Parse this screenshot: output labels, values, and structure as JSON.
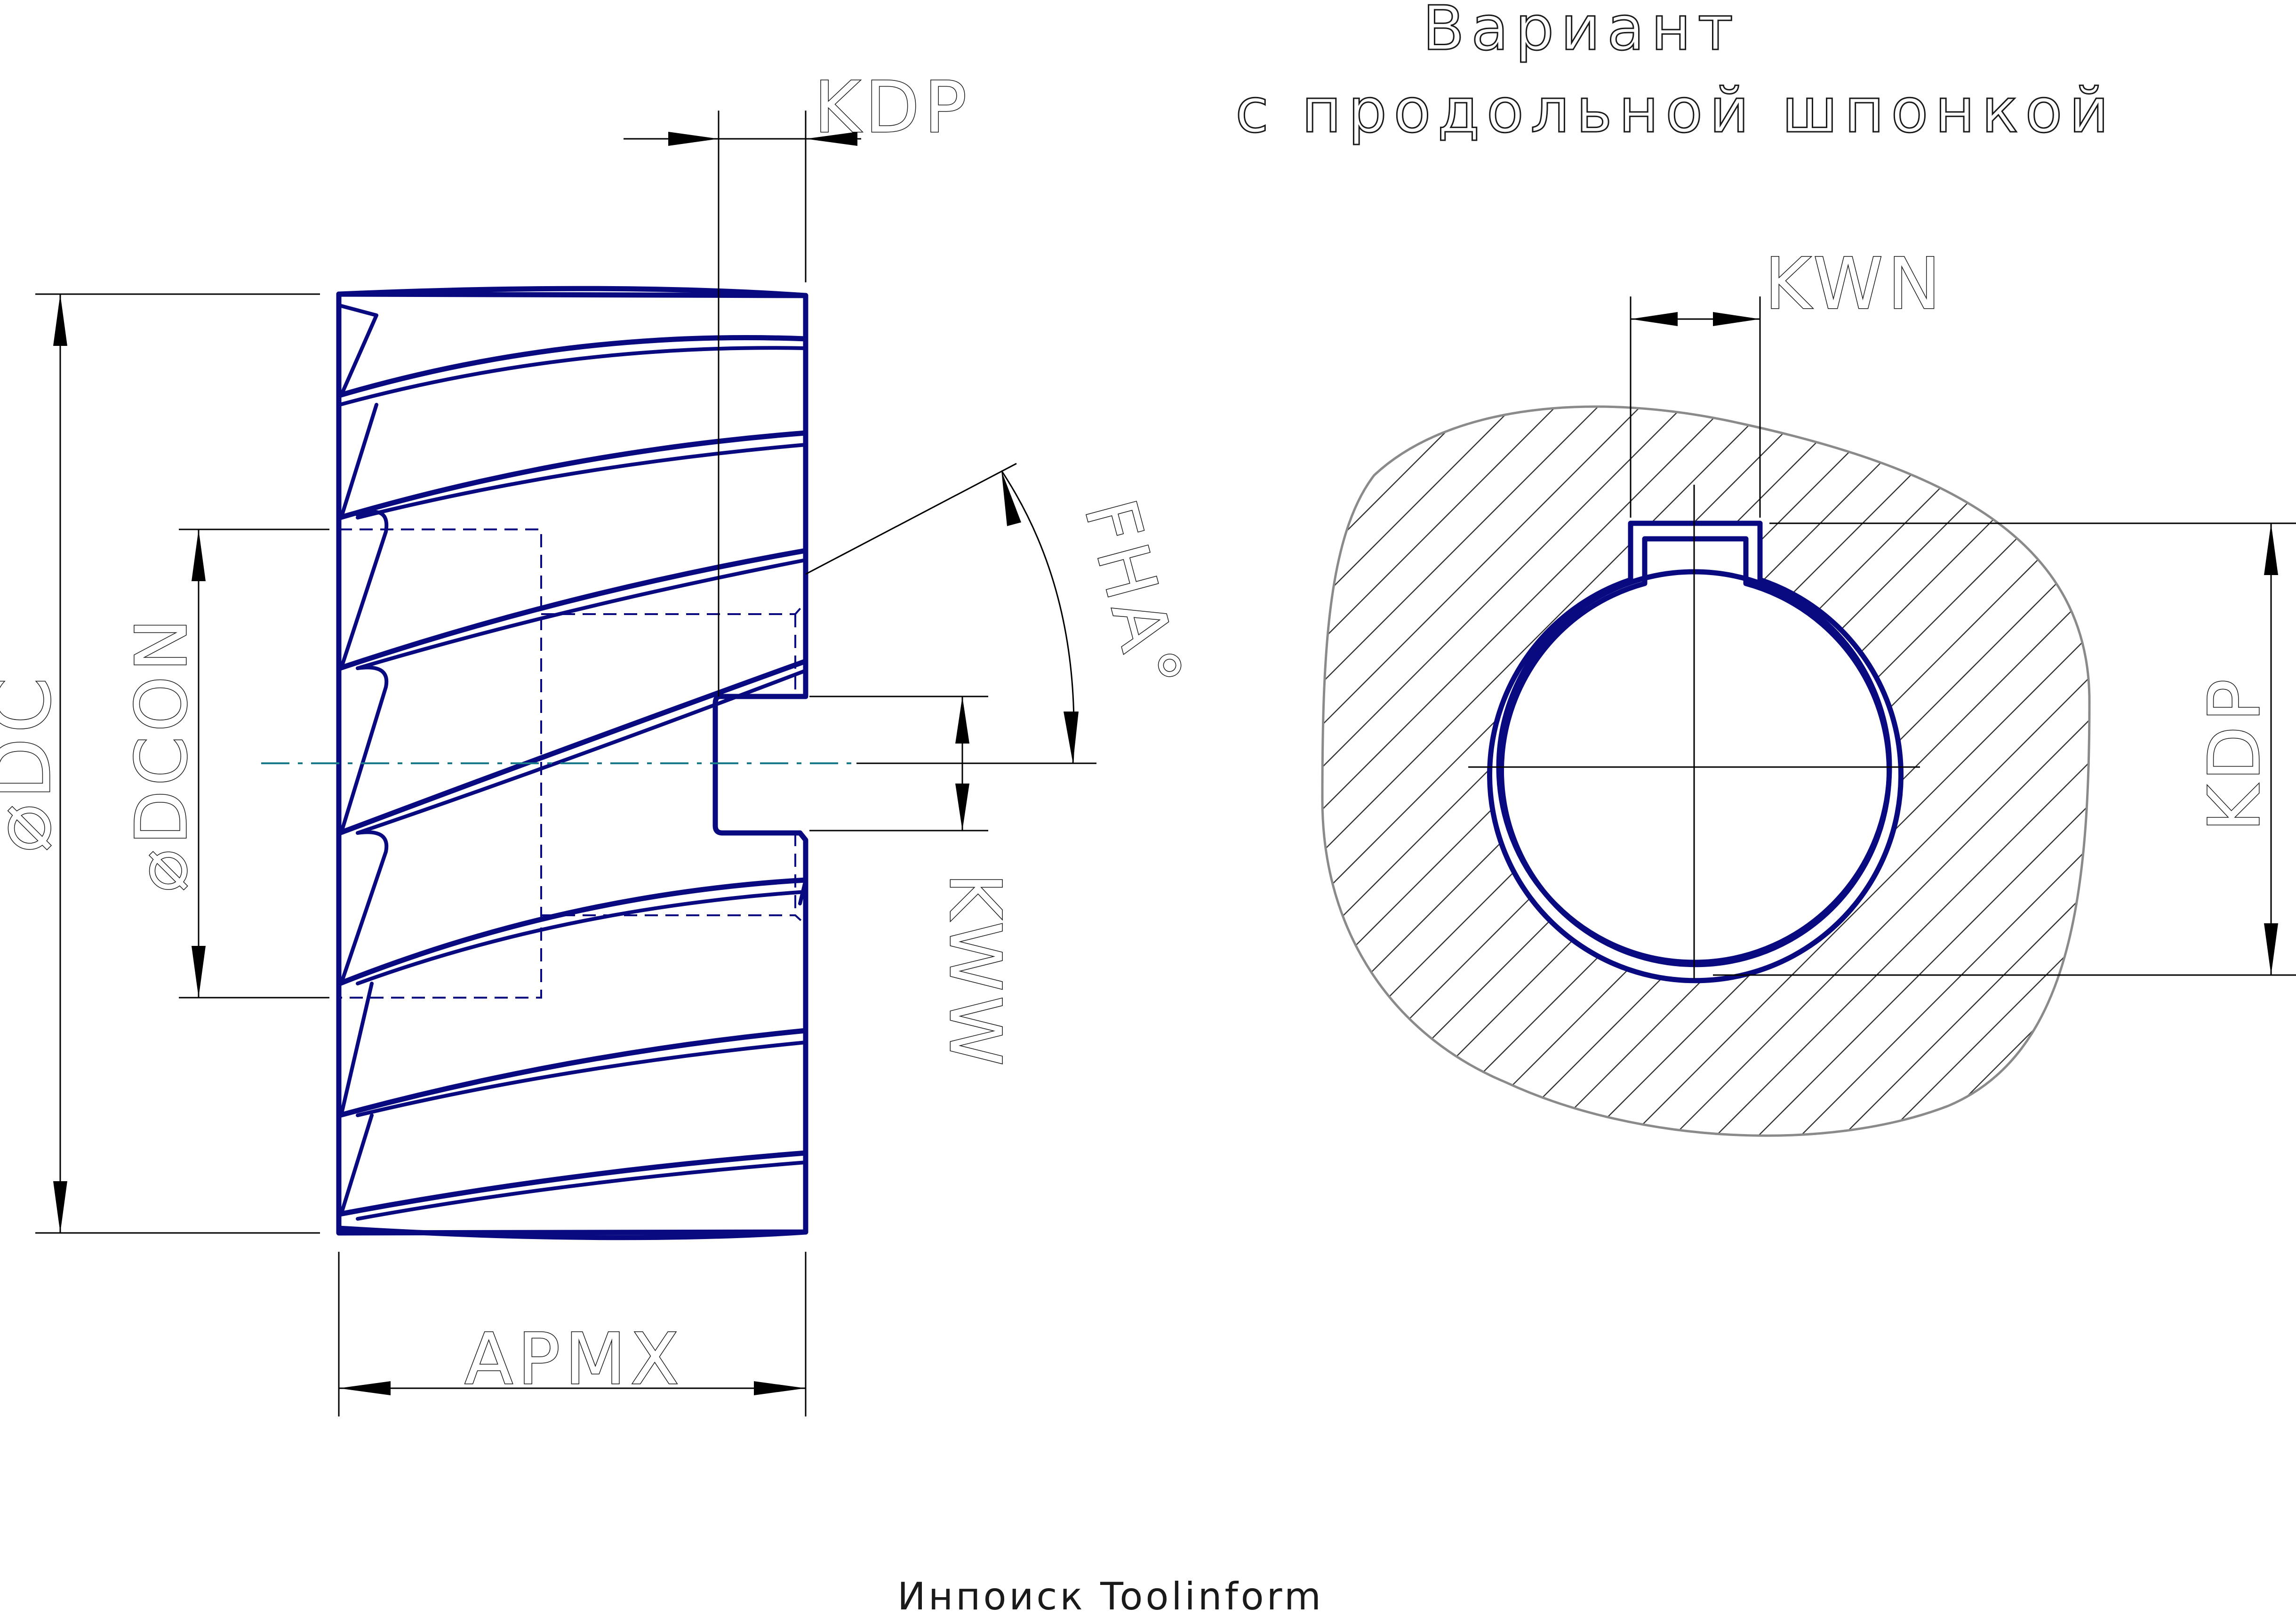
{
  "title": {
    "line1": "Вариант",
    "line2": "с продольной шпонкой"
  },
  "labels": {
    "kdp_top": "KDP",
    "kdp_right": "KDP",
    "dc": "⌀DC",
    "dcon": "⌀DCON",
    "fha": "FHA°",
    "kww": "KWW",
    "apmx": "APMX",
    "kwn": "KWN"
  },
  "footer": "Инпоиск Toolinform",
  "colors": {
    "tool_outline": "#0a0a80",
    "axis": "#1a7a8a",
    "dimension": "#000000",
    "section_outline": "#8a8a8a"
  }
}
